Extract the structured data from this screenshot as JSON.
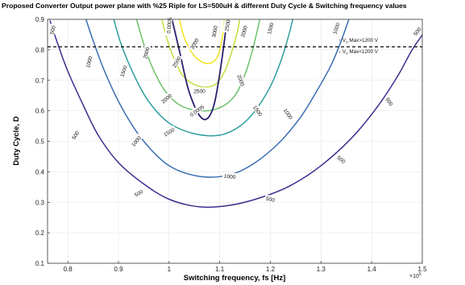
{
  "chart_data": {
    "type": "contour",
    "title": "Proposed Converter Output power plane with %25 Riple for LS=500uH & different Duty Cycle & Switching frequency values",
    "xlabel": "Switching frequency, fs [Hz]",
    "ylabel": "Duty Cycle, D",
    "x_multiplier": "×10",
    "x_multiplier_exp": "5",
    "xlim": [
      0.76,
      1.5
    ],
    "ylim": [
      0.1,
      0.9
    ],
    "xticks": [
      0.8,
      0.9,
      1,
      1.1,
      1.2,
      1.3,
      1.4,
      1.5
    ],
    "yticks": [
      0.1,
      0.2,
      0.3,
      0.4,
      0.5,
      0.6,
      0.7,
      0.8,
      0.9
    ],
    "grid": true,
    "threshold_line": {
      "y": 0.81,
      "style": "dashed"
    },
    "annotations": {
      "above_prefix": "↑ V",
      "above_sub": "o",
      "above_text": " Max>1200 V",
      "below_prefix": "↓ V",
      "below_sub": "o",
      "below_text": " Max<1200 V"
    },
    "colors": {
      "500": "#3b2f8f",
      "1000": "#3a6fb0",
      "1500": "#2e9d9d",
      "2000": "#6cc26a",
      "2500": "#c9d93c",
      "3000": "#f2e21f",
      "0.0005": "#2a1f6e"
    },
    "series": [
      {
        "name": "500",
        "points": [
          [
            0.765,
            0.895
          ],
          [
            0.78,
            0.82
          ],
          [
            0.8,
            0.73
          ],
          [
            0.83,
            0.62
          ],
          [
            0.86,
            0.52
          ],
          [
            0.9,
            0.43
          ],
          [
            0.95,
            0.36
          ],
          [
            1.0,
            0.31
          ],
          [
            1.06,
            0.285
          ],
          [
            1.12,
            0.29
          ],
          [
            1.18,
            0.315
          ],
          [
            1.24,
            0.355
          ],
          [
            1.3,
            0.42
          ],
          [
            1.36,
            0.51
          ],
          [
            1.41,
            0.61
          ],
          [
            1.45,
            0.71
          ],
          [
            1.48,
            0.8
          ],
          [
            1.505,
            0.86
          ]
        ],
        "labels": [
          {
            "x": 0.77,
            "y": 0.865,
            "rot": -75
          },
          {
            "x": 0.815,
            "y": 0.52,
            "rot": -58
          },
          {
            "x": 0.94,
            "y": 0.33,
            "rot": -30
          },
          {
            "x": 1.2,
            "y": 0.31,
            "rot": 14
          },
          {
            "x": 1.34,
            "y": 0.44,
            "rot": 38
          },
          {
            "x": 1.435,
            "y": 0.63,
            "rot": 56
          },
          {
            "x": 1.49,
            "y": 0.86,
            "rot": -50
          }
        ]
      },
      {
        "name": "1000",
        "points": [
          [
            0.835,
            0.905
          ],
          [
            0.85,
            0.83
          ],
          [
            0.875,
            0.72
          ],
          [
            0.91,
            0.6
          ],
          [
            0.95,
            0.5
          ],
          [
            1.0,
            0.42
          ],
          [
            1.06,
            0.385
          ],
          [
            1.12,
            0.39
          ],
          [
            1.17,
            0.43
          ],
          [
            1.22,
            0.5
          ],
          [
            1.26,
            0.58
          ],
          [
            1.29,
            0.66
          ],
          [
            1.32,
            0.75
          ],
          [
            1.34,
            0.83
          ],
          [
            1.355,
            0.9
          ]
        ],
        "labels": [
          {
            "x": 0.842,
            "y": 0.76,
            "rot": -75
          },
          {
            "x": 0.935,
            "y": 0.5,
            "rot": -50
          },
          {
            "x": 1.12,
            "y": 0.385,
            "rot": 5
          },
          {
            "x": 1.235,
            "y": 0.59,
            "rot": 55
          },
          {
            "x": 1.33,
            "y": 0.87,
            "rot": -72
          }
        ]
      },
      {
        "name": "1500",
        "points": [
          [
            0.89,
            0.905
          ],
          [
            0.905,
            0.82
          ],
          [
            0.93,
            0.72
          ],
          [
            0.96,
            0.63
          ],
          [
            1.0,
            0.56
          ],
          [
            1.05,
            0.525
          ],
          [
            1.1,
            0.52
          ],
          [
            1.14,
            0.55
          ],
          [
            1.17,
            0.6
          ],
          [
            1.2,
            0.68
          ],
          [
            1.22,
            0.76
          ],
          [
            1.235,
            0.84
          ],
          [
            1.245,
            0.905
          ]
        ],
        "labels": [
          {
            "x": 0.91,
            "y": 0.73,
            "rot": -72
          },
          {
            "x": 1.0,
            "y": 0.53,
            "rot": -30
          },
          {
            "x": 1.175,
            "y": 0.6,
            "rot": 55
          },
          {
            "x": 1.2,
            "y": 0.87,
            "rot": -75
          }
        ]
      },
      {
        "name": "2000",
        "points": [
          [
            0.935,
            0.905
          ],
          [
            0.948,
            0.83
          ],
          [
            0.965,
            0.75
          ],
          [
            0.99,
            0.67
          ],
          [
            1.02,
            0.62
          ],
          [
            1.06,
            0.6
          ],
          [
            1.1,
            0.61
          ],
          [
            1.13,
            0.65
          ],
          [
            1.15,
            0.72
          ],
          [
            1.165,
            0.8
          ],
          [
            1.175,
            0.87
          ],
          [
            1.18,
            0.905
          ]
        ],
        "labels": [
          {
            "x": 0.955,
            "y": 0.79,
            "rot": -75
          },
          {
            "x": 0.995,
            "y": 0.64,
            "rot": -40
          },
          {
            "x": 1.142,
            "y": 0.7,
            "rot": 70
          },
          {
            "x": 1.148,
            "y": 0.86,
            "rot": -75
          }
        ]
      },
      {
        "name": "2500",
        "points": [
          [
            0.985,
            0.905
          ],
          [
            0.995,
            0.84
          ],
          [
            1.01,
            0.77
          ],
          [
            1.03,
            0.71
          ],
          [
            1.06,
            0.68
          ],
          [
            1.09,
            0.685
          ],
          [
            1.11,
            0.73
          ],
          [
            1.125,
            0.8
          ],
          [
            1.135,
            0.86
          ],
          [
            1.14,
            0.905
          ]
        ],
        "labels": [
          {
            "x": 1.015,
            "y": 0.76,
            "rot": -60
          },
          {
            "x": 1.06,
            "y": 0.665,
            "rot": 0
          },
          {
            "x": 1.115,
            "y": 0.88,
            "rot": -80
          }
        ]
      },
      {
        "name": "3000",
        "points": [
          [
            1.02,
            0.905
          ],
          [
            1.03,
            0.84
          ],
          [
            1.05,
            0.78
          ],
          [
            1.075,
            0.755
          ],
          [
            1.095,
            0.775
          ],
          [
            1.105,
            0.84
          ],
          [
            1.11,
            0.905
          ]
        ],
        "labels": [
          {
            "x": 1.05,
            "y": 0.82,
            "rot": -60
          },
          {
            "x": 1.09,
            "y": 0.86,
            "rot": -80
          }
        ]
      },
      {
        "name": "0.0005",
        "points": [
          [
            1.005,
            0.905
          ],
          [
            1.02,
            0.8
          ],
          [
            1.04,
            0.66
          ],
          [
            1.065,
            0.575
          ],
          [
            1.085,
            0.6
          ],
          [
            1.1,
            0.72
          ],
          [
            1.115,
            0.905
          ]
        ],
        "labels": [
          {
            "x": 1.0,
            "y": 0.88,
            "rot": -85
          },
          {
            "x": 1.055,
            "y": 0.6,
            "rot": -35
          }
        ]
      }
    ]
  }
}
